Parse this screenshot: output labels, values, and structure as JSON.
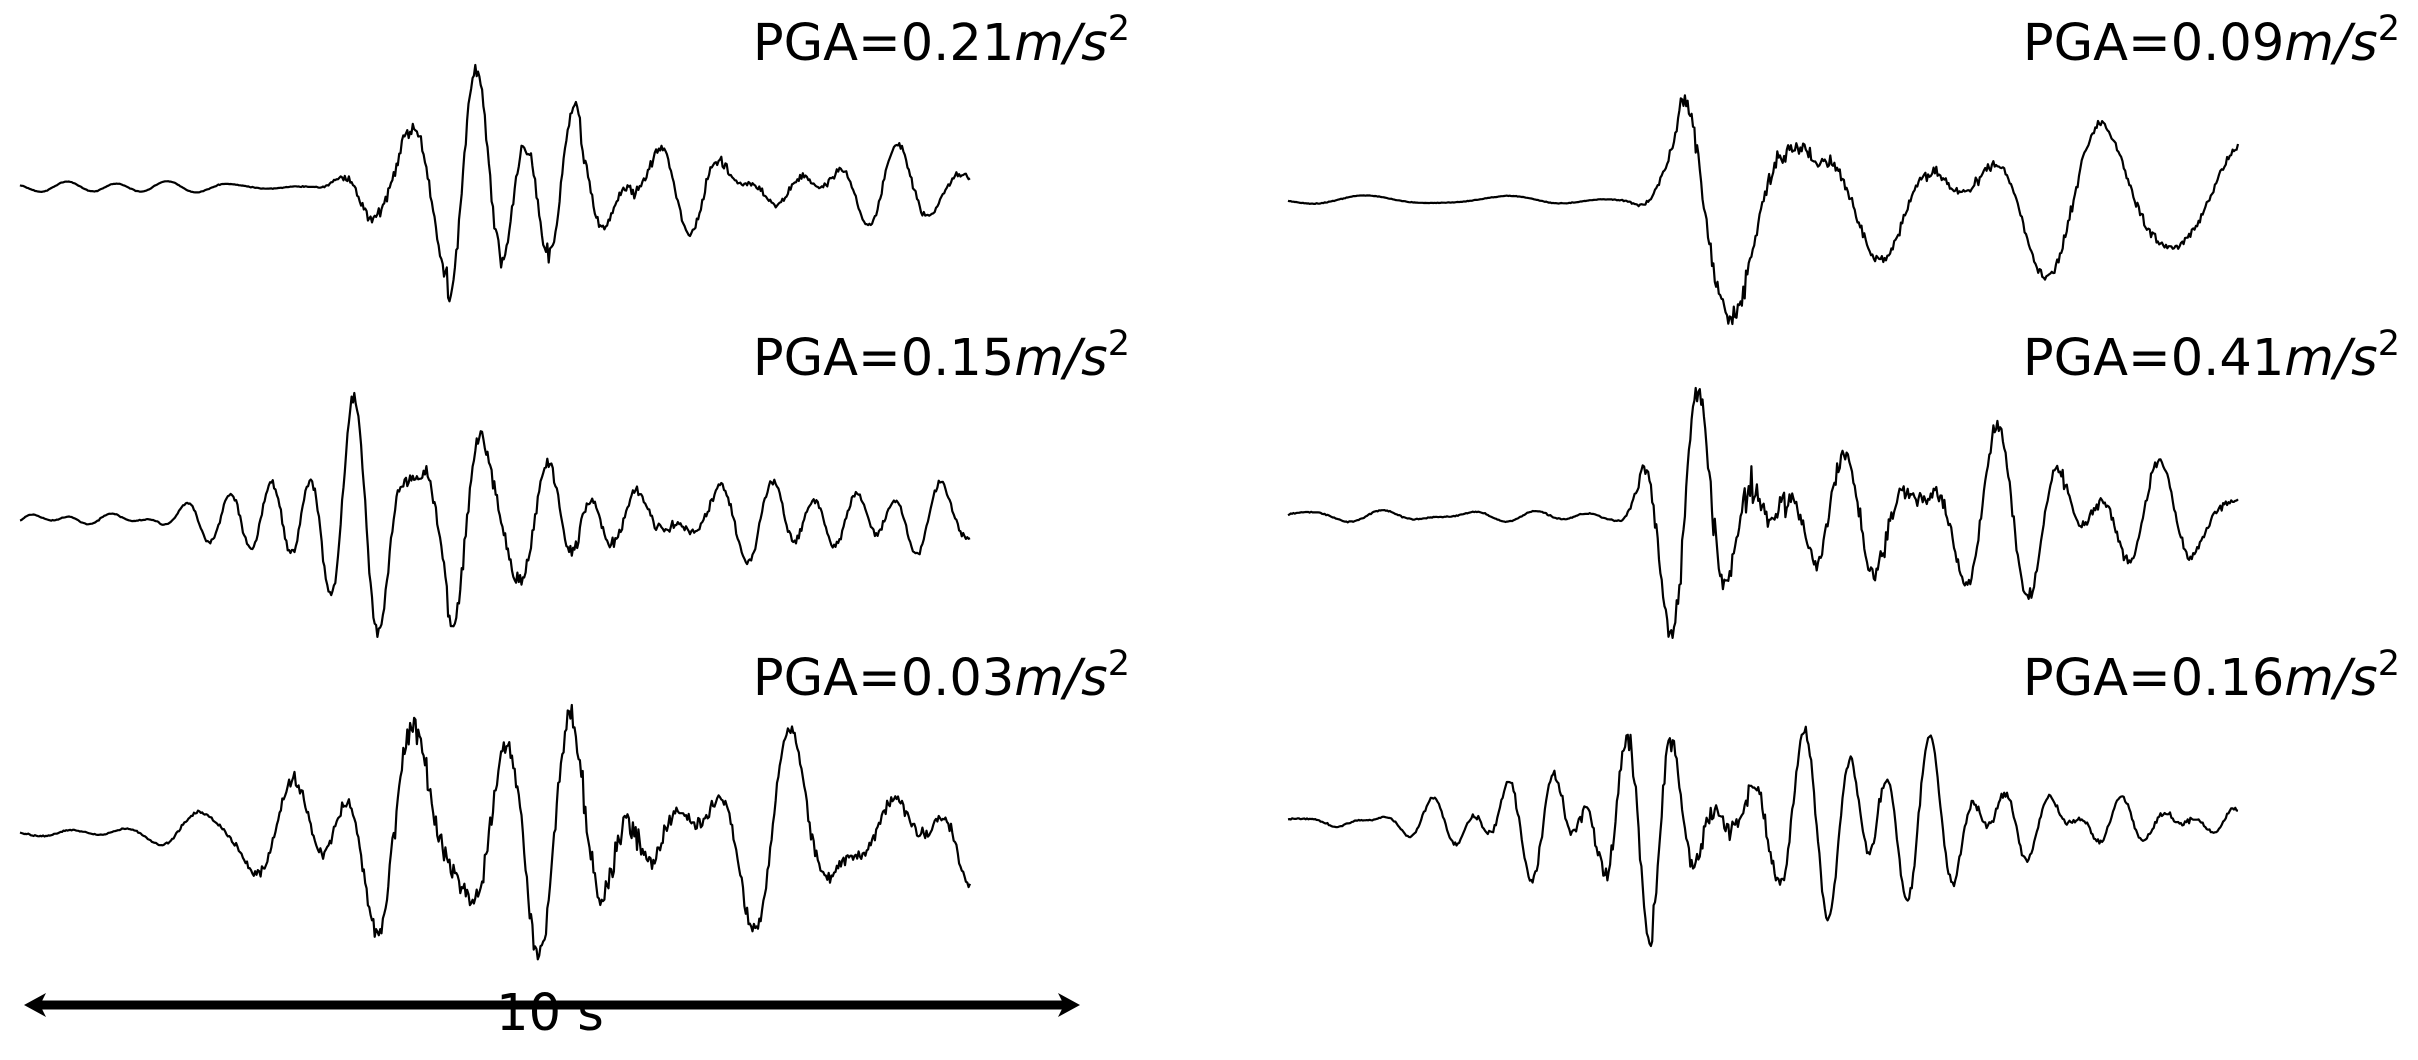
{
  "chart_data": [
    {
      "type": "line",
      "label_prefix": "PGA=",
      "pga": "0.21",
      "unit_base": "m/s",
      "unit_exp": "2",
      "samples": 700,
      "onset": 0.3,
      "peak": 0.52,
      "noise": 0.045,
      "rise": 0.1,
      "decay": 0.55,
      "freq": 95,
      "seed": 3,
      "end_offset": 0.03
    },
    {
      "type": "line",
      "label_prefix": "PGA=",
      "pga": "0.09",
      "unit_base": "m/s",
      "unit_exp": "2",
      "samples": 700,
      "onset": 0.34,
      "peak": 0.48,
      "noise": 0.04,
      "rise": 0.08,
      "decay": 0.7,
      "freq": 65,
      "seed": 11,
      "end_offset": 0.02
    },
    {
      "type": "line",
      "label_prefix": "PGA=",
      "pga": "0.15",
      "unit_base": "m/s",
      "unit_exp": "2",
      "samples": 700,
      "onset": 0.12,
      "peak": 0.52,
      "noise": 0.06,
      "rise": 0.25,
      "decay": 0.6,
      "freq": 105,
      "seed": 7,
      "end_offset": 0.1
    },
    {
      "type": "line",
      "label_prefix": "PGA=",
      "pga": "0.41",
      "unit_base": "m/s",
      "unit_exp": "2",
      "samples": 700,
      "onset": 0.34,
      "peak": 0.44,
      "noise": 0.04,
      "rise": 0.08,
      "decay": 0.45,
      "freq": 100,
      "seed": 19,
      "end_offset": 0.02
    },
    {
      "type": "line",
      "label_prefix": "PGA=",
      "pga": "0.03",
      "unit_base": "m/s",
      "unit_exp": "2",
      "samples": 700,
      "onset": 0.12,
      "peak": 0.6,
      "noise": 0.05,
      "rise": 0.3,
      "decay": 0.7,
      "freq": 80,
      "seed": 23,
      "end_offset": 0.02
    },
    {
      "type": "line",
      "label_prefix": "PGA=",
      "pga": "0.16",
      "unit_base": "m/s",
      "unit_exp": "2",
      "samples": 700,
      "onset": 0.1,
      "peak": 0.44,
      "noise": 0.07,
      "rise": 0.28,
      "decay": 0.35,
      "freq": 110,
      "seed": 31,
      "end_offset": 0.02
    }
  ],
  "scale_bar": {
    "label": "10 s"
  },
  "colors": {
    "trace": "#000000",
    "background": "#ffffff"
  }
}
